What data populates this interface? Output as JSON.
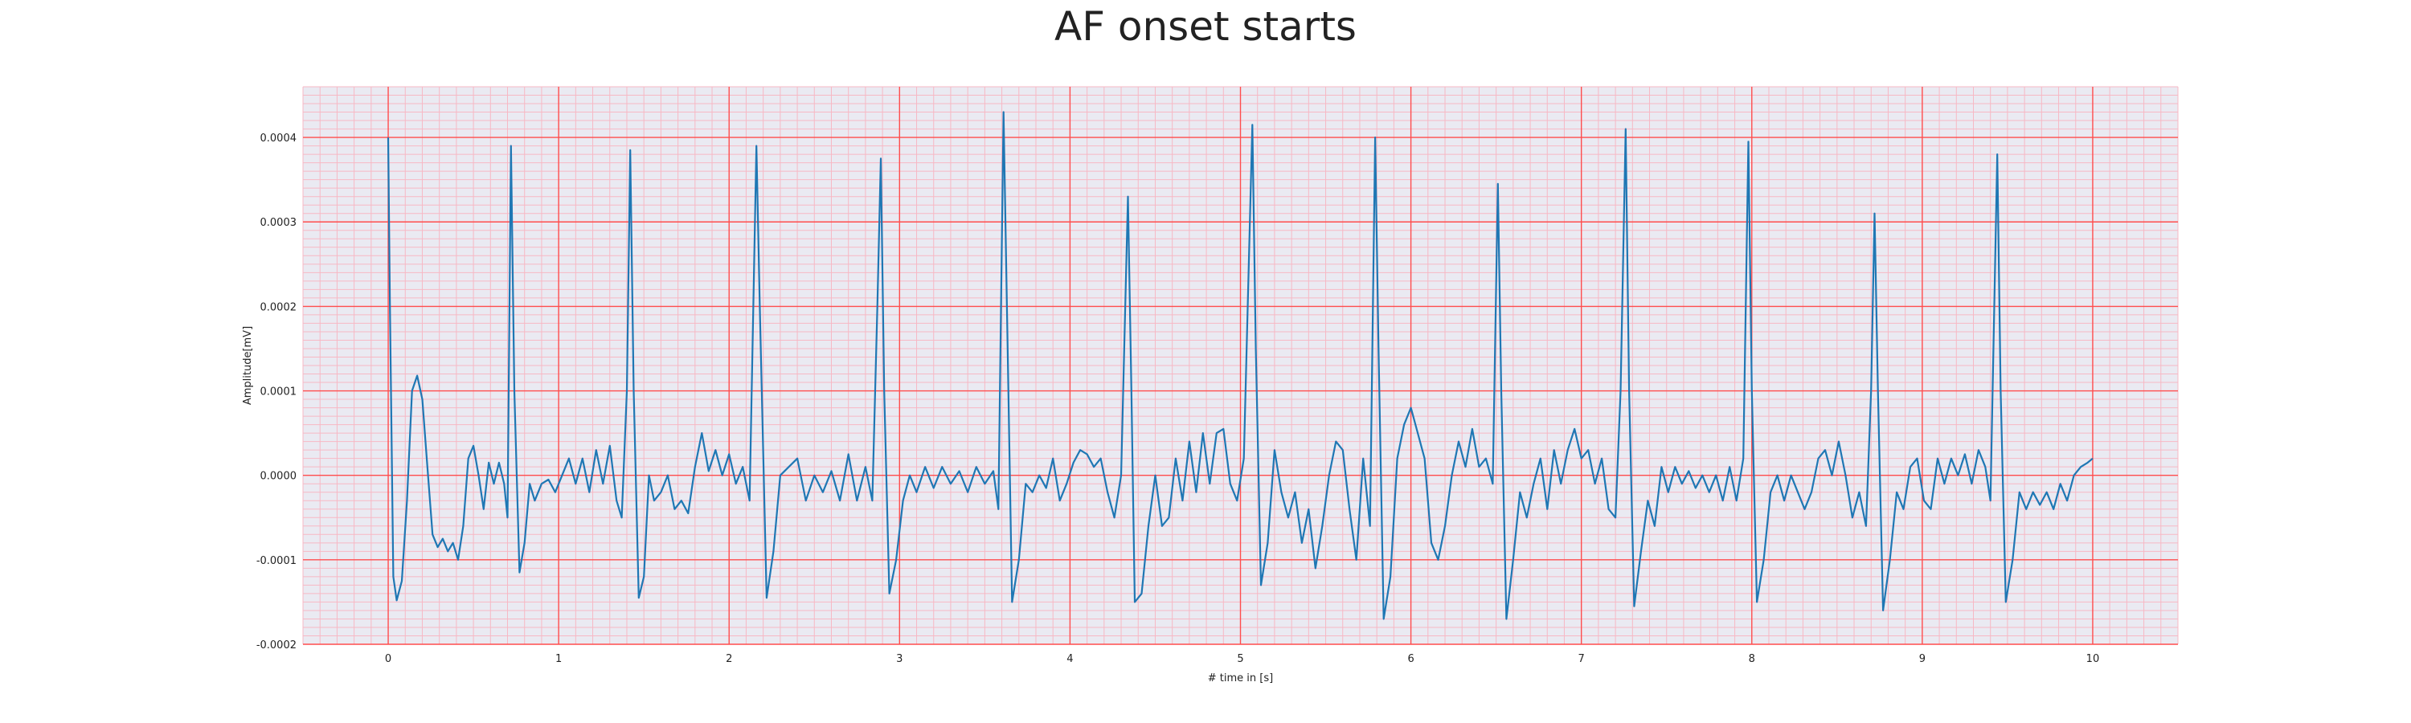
{
  "chart_data": {
    "type": "line",
    "title": "AF onset starts",
    "xlabel": "# time in [s]",
    "ylabel": "Amplitude[mV]",
    "xlim": [
      -0.5,
      10.5
    ],
    "ylim": [
      -0.0002,
      0.00046
    ],
    "x_ticks": [
      0,
      1,
      2,
      3,
      4,
      5,
      6,
      7,
      8,
      9,
      10
    ],
    "x_tick_labels": [
      "0",
      "1",
      "2",
      "3",
      "4",
      "5",
      "6",
      "7",
      "8",
      "9",
      "10"
    ],
    "y_ticks": [
      -0.0002,
      -0.0001,
      0.0,
      0.0001,
      0.0002,
      0.0003,
      0.0004
    ],
    "y_tick_labels": [
      "-0.0002",
      "-0.0001",
      "0.0000",
      "0.0001",
      "0.0002",
      "0.0003",
      "0.0004"
    ],
    "grid": true,
    "minor_grid": true,
    "colors": {
      "line": "#1f77b4",
      "background": "#eaeaf2",
      "major_grid": "#ff4d4d",
      "minor_grid": "#f7b8c4"
    },
    "series": [
      {
        "points": [
          [
            0.0,
            0.0004
          ],
          [
            0.01,
            0.0002
          ],
          [
            0.03,
            -0.00012
          ],
          [
            0.05,
            -0.000148
          ],
          [
            0.08,
            -0.000125
          ],
          [
            0.11,
            -3e-05
          ],
          [
            0.14,
            0.0001
          ],
          [
            0.17,
            0.000118
          ],
          [
            0.2,
            9e-05
          ],
          [
            0.23,
            1e-05
          ],
          [
            0.26,
            -7e-05
          ],
          [
            0.29,
            -8.5e-05
          ],
          [
            0.32,
            -7.5e-05
          ],
          [
            0.35,
            -9e-05
          ],
          [
            0.38,
            -8e-05
          ],
          [
            0.41,
            -0.0001
          ],
          [
            0.44,
            -6e-05
          ],
          [
            0.47,
            2e-05
          ],
          [
            0.5,
            3.5e-05
          ],
          [
            0.53,
            0.0
          ],
          [
            0.56,
            -4e-05
          ],
          [
            0.59,
            1.5e-05
          ],
          [
            0.62,
            -1e-05
          ],
          [
            0.65,
            1.5e-05
          ],
          [
            0.68,
            -1e-05
          ],
          [
            0.7,
            -5e-05
          ],
          [
            0.72,
            0.00039
          ],
          [
            0.74,
            0.0001
          ],
          [
            0.77,
            -0.000115
          ],
          [
            0.8,
            -8e-05
          ],
          [
            0.83,
            -1e-05
          ],
          [
            0.86,
            -3e-05
          ],
          [
            0.9,
            -1e-05
          ],
          [
            0.94,
            -5e-06
          ],
          [
            0.98,
            -2e-05
          ],
          [
            1.02,
            0.0
          ],
          [
            1.06,
            2e-05
          ],
          [
            1.1,
            -1e-05
          ],
          [
            1.14,
            2e-05
          ],
          [
            1.18,
            -2e-05
          ],
          [
            1.22,
            3e-05
          ],
          [
            1.26,
            -1e-05
          ],
          [
            1.3,
            3.5e-05
          ],
          [
            1.34,
            -3e-05
          ],
          [
            1.37,
            -5e-05
          ],
          [
            1.4,
            0.0001
          ],
          [
            1.42,
            0.000385
          ],
          [
            1.44,
            0.0001
          ],
          [
            1.47,
            -0.000145
          ],
          [
            1.5,
            -0.00012
          ],
          [
            1.53,
            0.0
          ],
          [
            1.56,
            -3e-05
          ],
          [
            1.6,
            -2e-05
          ],
          [
            1.64,
            0.0
          ],
          [
            1.68,
            -4e-05
          ],
          [
            1.72,
            -3e-05
          ],
          [
            1.76,
            -4.5e-05
          ],
          [
            1.8,
            1e-05
          ],
          [
            1.84,
            5e-05
          ],
          [
            1.88,
            5e-06
          ],
          [
            1.92,
            3e-05
          ],
          [
            1.96,
            0.0
          ],
          [
            2.0,
            2.5e-05
          ],
          [
            2.04,
            -1e-05
          ],
          [
            2.08,
            1e-05
          ],
          [
            2.12,
            -3e-05
          ],
          [
            2.16,
            0.00039
          ],
          [
            2.18,
            0.0002
          ],
          [
            2.22,
            -0.000145
          ],
          [
            2.26,
            -9e-05
          ],
          [
            2.3,
            0.0
          ],
          [
            2.35,
            1e-05
          ],
          [
            2.4,
            2e-05
          ],
          [
            2.45,
            -3e-05
          ],
          [
            2.5,
            0.0
          ],
          [
            2.55,
            -2e-05
          ],
          [
            2.6,
            5e-06
          ],
          [
            2.65,
            -3e-05
          ],
          [
            2.7,
            2.5e-05
          ],
          [
            2.75,
            -3e-05
          ],
          [
            2.8,
            1e-05
          ],
          [
            2.84,
            -3e-05
          ],
          [
            2.87,
            0.0002
          ],
          [
            2.89,
            0.000375
          ],
          [
            2.91,
            0.0001
          ],
          [
            2.94,
            -0.00014
          ],
          [
            2.98,
            -0.0001
          ],
          [
            3.02,
            -3e-05
          ],
          [
            3.06,
            0.0
          ],
          [
            3.1,
            -2e-05
          ],
          [
            3.15,
            1e-05
          ],
          [
            3.2,
            -1.5e-05
          ],
          [
            3.25,
            1e-05
          ],
          [
            3.3,
            -1e-05
          ],
          [
            3.35,
            5e-06
          ],
          [
            3.4,
            -2e-05
          ],
          [
            3.45,
            1e-05
          ],
          [
            3.5,
            -1e-05
          ],
          [
            3.55,
            5e-06
          ],
          [
            3.58,
            -4e-05
          ],
          [
            3.61,
            0.00043
          ],
          [
            3.63,
            0.0002
          ],
          [
            3.66,
            -0.00015
          ],
          [
            3.7,
            -0.0001
          ],
          [
            3.74,
            -1e-05
          ],
          [
            3.78,
            -2e-05
          ],
          [
            3.82,
            0.0
          ],
          [
            3.86,
            -1.5e-05
          ],
          [
            3.9,
            2e-05
          ],
          [
            3.94,
            -3e-05
          ],
          [
            3.98,
            -1e-05
          ],
          [
            4.02,
            1.5e-05
          ],
          [
            4.06,
            3e-05
          ],
          [
            4.1,
            2.5e-05
          ],
          [
            4.14,
            1e-05
          ],
          [
            4.18,
            2e-05
          ],
          [
            4.22,
            -2e-05
          ],
          [
            4.26,
            -5e-05
          ],
          [
            4.3,
            0.0
          ],
          [
            4.34,
            0.00033
          ],
          [
            4.36,
            0.0001
          ],
          [
            4.38,
            -0.00015
          ],
          [
            4.42,
            -0.00014
          ],
          [
            4.46,
            -6e-05
          ],
          [
            4.5,
            0.0
          ],
          [
            4.54,
            -6e-05
          ],
          [
            4.58,
            -5e-05
          ],
          [
            4.62,
            2e-05
          ],
          [
            4.66,
            -3e-05
          ],
          [
            4.7,
            4e-05
          ],
          [
            4.74,
            -2e-05
          ],
          [
            4.78,
            5e-05
          ],
          [
            4.82,
            -1e-05
          ],
          [
            4.86,
            5e-05
          ],
          [
            4.9,
            5.5e-05
          ],
          [
            4.94,
            -1e-05
          ],
          [
            4.98,
            -3e-05
          ],
          [
            5.02,
            2e-05
          ],
          [
            5.07,
            0.000415
          ],
          [
            5.09,
            0.00015
          ],
          [
            5.12,
            -0.00013
          ],
          [
            5.16,
            -8e-05
          ],
          [
            5.2,
            3e-05
          ],
          [
            5.24,
            -2e-05
          ],
          [
            5.28,
            -5e-05
          ],
          [
            5.32,
            -2e-05
          ],
          [
            5.36,
            -8e-05
          ],
          [
            5.4,
            -4e-05
          ],
          [
            5.44,
            -0.00011
          ],
          [
            5.48,
            -6e-05
          ],
          [
            5.52,
            0.0
          ],
          [
            5.56,
            4e-05
          ],
          [
            5.6,
            3e-05
          ],
          [
            5.64,
            -4e-05
          ],
          [
            5.68,
            -0.0001
          ],
          [
            5.72,
            2e-05
          ],
          [
            5.76,
            -6e-05
          ],
          [
            5.79,
            0.0004
          ],
          [
            5.81,
            0.00015
          ],
          [
            5.84,
            -0.00017
          ],
          [
            5.88,
            -0.00012
          ],
          [
            5.92,
            2e-05
          ],
          [
            5.96,
            6e-05
          ],
          [
            6.0,
            8e-05
          ],
          [
            6.04,
            5e-05
          ],
          [
            6.08,
            2e-05
          ],
          [
            6.12,
            -8e-05
          ],
          [
            6.16,
            -0.0001
          ],
          [
            6.2,
            -6e-05
          ],
          [
            6.24,
            0.0
          ],
          [
            6.28,
            4e-05
          ],
          [
            6.32,
            1e-05
          ],
          [
            6.36,
            5.5e-05
          ],
          [
            6.4,
            1e-05
          ],
          [
            6.44,
            2e-05
          ],
          [
            6.48,
            -1e-05
          ],
          [
            6.51,
            0.000345
          ],
          [
            6.53,
            0.0001
          ],
          [
            6.56,
            -0.00017
          ],
          [
            6.6,
            -0.0001
          ],
          [
            6.64,
            -2e-05
          ],
          [
            6.68,
            -5e-05
          ],
          [
            6.72,
            -1e-05
          ],
          [
            6.76,
            2e-05
          ],
          [
            6.8,
            -4e-05
          ],
          [
            6.84,
            3e-05
          ],
          [
            6.88,
            -1e-05
          ],
          [
            6.92,
            3e-05
          ],
          [
            6.96,
            5.5e-05
          ],
          [
            7.0,
            2e-05
          ],
          [
            7.04,
            3e-05
          ],
          [
            7.08,
            -1e-05
          ],
          [
            7.12,
            2e-05
          ],
          [
            7.16,
            -4e-05
          ],
          [
            7.2,
            -5e-05
          ],
          [
            7.23,
            0.0001
          ],
          [
            7.26,
            0.00041
          ],
          [
            7.28,
            0.0001
          ],
          [
            7.31,
            -0.000155
          ],
          [
            7.35,
            -9e-05
          ],
          [
            7.39,
            -3e-05
          ],
          [
            7.43,
            -6e-05
          ],
          [
            7.47,
            1e-05
          ],
          [
            7.51,
            -2e-05
          ],
          [
            7.55,
            1e-05
          ],
          [
            7.59,
            -1e-05
          ],
          [
            7.63,
            5e-06
          ],
          [
            7.67,
            -1.5e-05
          ],
          [
            7.71,
            0.0
          ],
          [
            7.75,
            -2e-05
          ],
          [
            7.79,
            0.0
          ],
          [
            7.83,
            -3e-05
          ],
          [
            7.87,
            1e-05
          ],
          [
            7.91,
            -3e-05
          ],
          [
            7.95,
            2e-05
          ],
          [
            7.98,
            0.000395
          ],
          [
            8.0,
            0.0001
          ],
          [
            8.03,
            -0.00015
          ],
          [
            8.07,
            -0.0001
          ],
          [
            8.11,
            -2e-05
          ],
          [
            8.15,
            0.0
          ],
          [
            8.19,
            -3e-05
          ],
          [
            8.23,
            0.0
          ],
          [
            8.27,
            -2e-05
          ],
          [
            8.31,
            -4e-05
          ],
          [
            8.35,
            -2e-05
          ],
          [
            8.39,
            2e-05
          ],
          [
            8.43,
            3e-05
          ],
          [
            8.47,
            0.0
          ],
          [
            8.51,
            4e-05
          ],
          [
            8.55,
            0.0
          ],
          [
            8.59,
            -5e-05
          ],
          [
            8.63,
            -2e-05
          ],
          [
            8.67,
            -6e-05
          ],
          [
            8.7,
            0.0001
          ],
          [
            8.72,
            0.00031
          ],
          [
            8.74,
            0.0001
          ],
          [
            8.77,
            -0.00016
          ],
          [
            8.81,
            -0.0001
          ],
          [
            8.85,
            -2e-05
          ],
          [
            8.89,
            -4e-05
          ],
          [
            8.93,
            1e-05
          ],
          [
            8.97,
            2e-05
          ],
          [
            9.01,
            -3e-05
          ],
          [
            9.05,
            -4e-05
          ],
          [
            9.09,
            2e-05
          ],
          [
            9.13,
            -1e-05
          ],
          [
            9.17,
            2e-05
          ],
          [
            9.21,
            0.0
          ],
          [
            9.25,
            2.5e-05
          ],
          [
            9.29,
            -1e-05
          ],
          [
            9.33,
            3e-05
          ],
          [
            9.37,
            1e-05
          ],
          [
            9.4,
            -3e-05
          ],
          [
            9.44,
            0.00038
          ],
          [
            9.46,
            0.0001
          ],
          [
            9.49,
            -0.00015
          ],
          [
            9.53,
            -0.0001
          ],
          [
            9.57,
            -2e-05
          ],
          [
            9.61,
            -4e-05
          ],
          [
            9.65,
            -2e-05
          ],
          [
            9.69,
            -3.5e-05
          ],
          [
            9.73,
            -2e-05
          ],
          [
            9.77,
            -4e-05
          ],
          [
            9.81,
            -1e-05
          ],
          [
            9.85,
            -3e-05
          ],
          [
            9.89,
            0.0
          ],
          [
            9.93,
            1e-05
          ],
          [
            9.97,
            1.5e-05
          ],
          [
            10.0,
            2e-05
          ]
        ]
      }
    ]
  }
}
